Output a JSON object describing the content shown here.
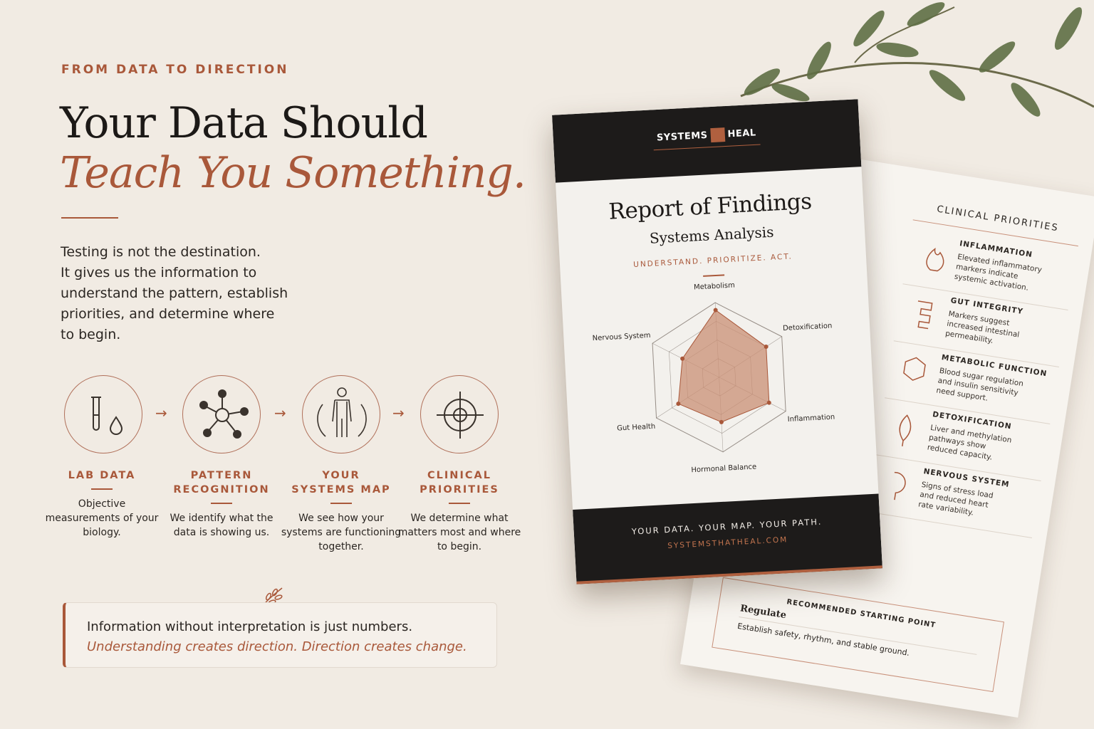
{
  "eyebrow": "FROM DATA TO DIRECTION",
  "headline": {
    "line1": "Your Data Should",
    "line2": "Teach You Something."
  },
  "intro": [
    "Testing is not the destination.",
    "It gives us the information to",
    "understand the pattern, establish",
    "priorities, and determine where",
    "to begin."
  ],
  "steps": [
    {
      "title": "LAB DATA",
      "text": "Objective measurements of your biology."
    },
    {
      "title": "PATTERN RECOGNITION",
      "text": "We identify what the data is showing us."
    },
    {
      "title": "YOUR SYSTEMS MAP",
      "text": "We see how your systems are functioning together."
    },
    {
      "title": "CLINICAL PRIORITIES",
      "text": "We determine what matters most and where to begin."
    }
  ],
  "quote": {
    "line1": "Information without interpretation is just numbers.",
    "line2": "Understanding creates direction. Direction creates change."
  },
  "report": {
    "brand_left": "SYSTEMS",
    "brand_right": "HEAL",
    "title": "Report of Findings",
    "subtitle": "Systems Analysis",
    "tagline": "UNDERSTAND. PRIORITIZE. ACT.",
    "footer": "YOUR DATA. YOUR MAP. YOUR PATH.",
    "url": "SYSTEMSTHATHEAL.COM"
  },
  "chart_data": {
    "type": "radar",
    "categories": [
      "Metabolism",
      "Detoxification",
      "Inflammation",
      "Hormonal Balance",
      "Gut Health",
      "Nervous System"
    ],
    "values": [
      3.6,
      3.0,
      3.0,
      2.4,
      2.6,
      2.2
    ],
    "rlim": [
      0,
      4
    ],
    "rticks": [
      1,
      2,
      3,
      4
    ],
    "color": "#c98f74"
  },
  "sheet": {
    "title": "CLINICAL PRIORITIES",
    "items": [
      {
        "title": "INFLAMMATION",
        "text": "Elevated inflammatory markers indicate systemic activation."
      },
      {
        "title": "GUT INTEGRITY",
        "text": "Markers suggest increased intestinal permeability."
      },
      {
        "title": "METABOLIC FUNCTION",
        "text": "Blood sugar regulation and insulin sensitivity need support."
      },
      {
        "title": "DETOXIFICATION",
        "text": "Liver and methylation pathways show reduced capacity."
      },
      {
        "title": "NERVOUS SYSTEM",
        "text": "Signs of stress load and reduced heart rate variability."
      }
    ],
    "recommend": {
      "label": "RECOMMENDED STARTING POINT",
      "title": "Regulate",
      "text": "Establish safety, rhythm, and stable ground."
    }
  }
}
